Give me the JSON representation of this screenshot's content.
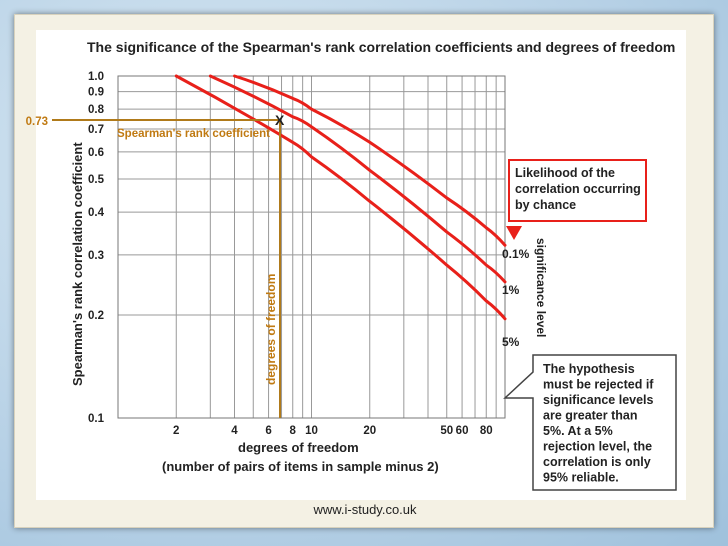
{
  "chart_data": {
    "type": "line",
    "title": "The significance of the Spearman's rank correlation coefficients and degrees of freedom",
    "xlabel": "degrees of freedom",
    "xlabel_sub": "(number of pairs of items in sample minus 2)",
    "ylabel": "Spearman's rank correlation coefficient",
    "x_scale": "log",
    "y_scale": "log",
    "xlim": [
      1,
      100
    ],
    "ylim": [
      0.1,
      1.0
    ],
    "x_ticks": [
      2,
      4,
      6,
      8,
      10,
      20,
      50,
      60,
      80
    ],
    "y_ticks": [
      1.0,
      0.9,
      0.8,
      0.7,
      0.6,
      0.5,
      0.4,
      0.3,
      0.2,
      0.1
    ],
    "y_tick_labels": [
      "1.0",
      "0.9",
      "0.8",
      "0.7",
      "0.6",
      "0.5",
      "0.4",
      "0.3",
      "0.2",
      "0.1"
    ],
    "grid": true,
    "series": [
      {
        "name": "0.1%",
        "x": [
          4.0,
          8,
          10,
          20,
          50,
          80,
          100
        ],
        "y": [
          1.0,
          0.86,
          0.8,
          0.64,
          0.44,
          0.36,
          0.32
        ]
      },
      {
        "name": "1%",
        "x": [
          3.0,
          8,
          10,
          20,
          50,
          80,
          100
        ],
        "y": [
          1.0,
          0.76,
          0.71,
          0.53,
          0.35,
          0.28,
          0.25
        ]
      },
      {
        "name": "5%",
        "x": [
          2.0,
          8,
          10,
          20,
          50,
          80,
          100
        ],
        "y": [
          1.0,
          0.64,
          0.58,
          0.43,
          0.28,
          0.22,
          0.195
        ]
      }
    ],
    "marker": {
      "x": 8,
      "y": 0.73,
      "symbol": "X",
      "y_label": "0.73"
    },
    "annotations": {
      "spearman_label": "Spearman's rank coefficient",
      "dof_label": "degrees of freedom",
      "significance_axis": "significance level",
      "likelihood_box": [
        "Likelihood of the",
        "correlation occurring",
        "by chance"
      ],
      "hypothesis_box": [
        "The hypothesis",
        "must be rejected if",
        "significance levels",
        "are greater than",
        "5%. At a 5%",
        "rejection level, the",
        "correlation is only",
        "95% reliable."
      ]
    },
    "footer": "www.i-study.co.uk",
    "colors": {
      "curve": "#e8201a",
      "marker_line": "#b07a1a",
      "box_border": "#e8201a",
      "arrow": "#e8201a"
    }
  }
}
